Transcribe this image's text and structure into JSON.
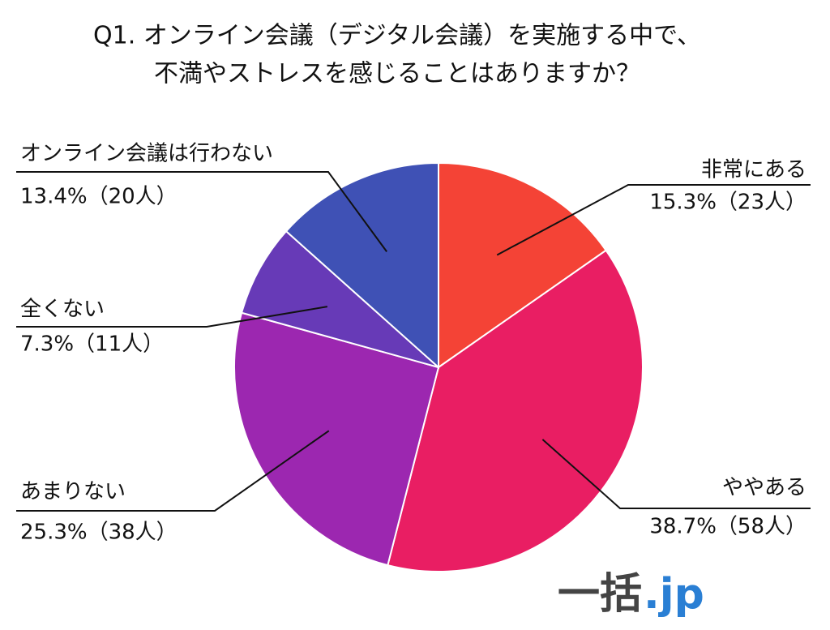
{
  "chart_data": {
    "type": "pie",
    "title": [
      "Q1. オンライン会議（デジタル会議）を実施する中で、",
      "不満やストレスを感じることはありますか？"
    ],
    "categories": [
      "非常にある",
      "ややある",
      "あまりない",
      "全くない",
      "オンライン会議は行わない"
    ],
    "values": [
      15.3,
      38.7,
      25.3,
      7.3,
      13.4
    ],
    "value_labels": [
      "15.3%（23人）",
      "38.7%（58人）",
      "25.3%（38人）",
      "7.3%（11人）",
      "13.4%（20人）"
    ],
    "colors": [
      "#f44336",
      "#e91e63",
      "#9c27b0",
      "#673ab7",
      "#3f51b5"
    ],
    "logo": [
      "一括",
      ".jp"
    ]
  }
}
